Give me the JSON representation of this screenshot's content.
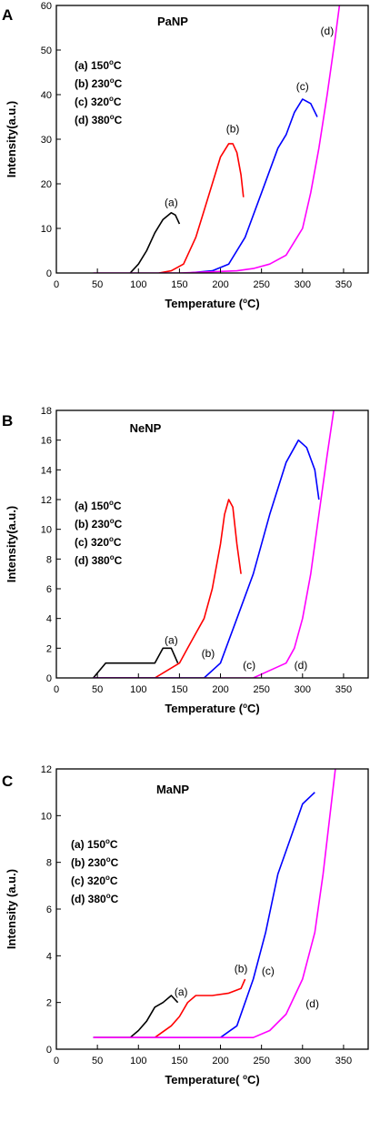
{
  "chart_data": [
    {
      "panel": "A",
      "type": "line",
      "title": "PaNP",
      "xlabel": "Temperature (°C)",
      "ylabel": "Intensity(a.u.)",
      "xlim": [
        0,
        380
      ],
      "ylim": [
        0,
        60
      ],
      "xticks": [
        0,
        50,
        100,
        150,
        200,
        250,
        300,
        350
      ],
      "yticks": [
        0,
        10,
        20,
        30,
        40,
        50,
        60
      ],
      "legend": [
        "(a) 150°C",
        "(b) 230°C",
        "(c) 320°C",
        "(d) 380°C"
      ],
      "series": [
        {
          "name": "(a)",
          "color": "#000000",
          "x": [
            90,
            100,
            110,
            120,
            130,
            140,
            145,
            150
          ],
          "y": [
            0,
            2,
            5,
            9,
            12,
            13.5,
            13,
            11
          ]
        },
        {
          "name": "(b)",
          "color": "#ff0000",
          "x": [
            125,
            140,
            155,
            170,
            180,
            190,
            200,
            210,
            215,
            220,
            225,
            228
          ],
          "y": [
            0,
            0.5,
            2,
            8,
            14,
            20,
            26,
            29,
            29,
            27,
            22,
            17
          ]
        },
        {
          "name": "(c)",
          "color": "#0000ff",
          "x": [
            160,
            190,
            210,
            230,
            250,
            270,
            280,
            290,
            300,
            310,
            318
          ],
          "y": [
            0,
            0.5,
            2,
            8,
            18,
            28,
            31,
            36,
            39,
            38,
            35
          ]
        },
        {
          "name": "(d)",
          "color": "#ff00ff",
          "x": [
            45,
            150,
            220,
            240,
            260,
            280,
            300,
            310,
            320,
            330,
            340,
            345
          ],
          "y": [
            0,
            0,
            0.5,
            1,
            2,
            4,
            10,
            18,
            28,
            40,
            53,
            60
          ]
        }
      ],
      "curve_labels": [
        {
          "text": "(a)",
          "x": 140,
          "y": 15
        },
        {
          "text": "(b)",
          "x": 215,
          "y": 31.5
        },
        {
          "text": "(c)",
          "x": 300,
          "y": 41
        },
        {
          "text": "(d)",
          "x": 330,
          "y": 53.5
        }
      ]
    },
    {
      "panel": "B",
      "type": "line",
      "title": "NeNP",
      "xlabel": "Temperature (°C)",
      "ylabel": "Intensity(a.u.)",
      "xlim": [
        0,
        380
      ],
      "ylim": [
        0,
        18
      ],
      "xticks": [
        0,
        50,
        100,
        150,
        200,
        250,
        300,
        350
      ],
      "yticks": [
        0,
        2,
        4,
        6,
        8,
        10,
        12,
        14,
        16,
        18
      ],
      "legend": [
        "(a) 150°C",
        "(b) 230°C",
        "(c) 320°C",
        "(d) 380°C"
      ],
      "series": [
        {
          "name": "(a)",
          "color": "#000000",
          "x": [
            45,
            60,
            75,
            90,
            105,
            120,
            130,
            140,
            148
          ],
          "y": [
            0,
            1,
            1,
            1,
            1,
            1,
            2,
            2,
            1
          ]
        },
        {
          "name": "(b)",
          "color": "#ff0000",
          "x": [
            45,
            120,
            150,
            160,
            170,
            180,
            190,
            200,
            205,
            210,
            215,
            220,
            225
          ],
          "y": [
            0,
            0,
            1,
            2,
            3,
            4,
            6,
            9,
            11,
            12,
            11.5,
            9,
            7
          ]
        },
        {
          "name": "(c)",
          "color": "#0000ff",
          "x": [
            45,
            180,
            200,
            220,
            240,
            260,
            280,
            295,
            305,
            315,
            320
          ],
          "y": [
            0,
            0,
            1,
            4,
            7,
            11,
            14.5,
            16,
            15.5,
            14,
            12
          ]
        },
        {
          "name": "(d)",
          "color": "#ff00ff",
          "x": [
            45,
            240,
            260,
            280,
            290,
            300,
            310,
            320,
            330,
            338
          ],
          "y": [
            0,
            0,
            0.5,
            1,
            2,
            4,
            7,
            11,
            15,
            18
          ]
        }
      ],
      "curve_labels": [
        {
          "text": "(a)",
          "x": 140,
          "y": 2.3
        },
        {
          "text": "(b)",
          "x": 185,
          "y": 1.4
        },
        {
          "text": "(c)",
          "x": 235,
          "y": 0.6
        },
        {
          "text": "(d)",
          "x": 298,
          "y": 0.6
        }
      ]
    },
    {
      "panel": "C",
      "type": "line",
      "title": "MaNP",
      "xlabel": "Temperature( °C)",
      "ylabel": "Intensity (a.u.)",
      "xlim": [
        0,
        380
      ],
      "ylim": [
        0,
        12
      ],
      "xticks": [
        0,
        50,
        100,
        150,
        200,
        250,
        300,
        350
      ],
      "yticks": [
        0,
        2,
        4,
        6,
        8,
        10,
        12
      ],
      "legend": [
        "(a) 150°C",
        "(b) 230°C",
        "(c) 320°C",
        "(d) 380°C"
      ],
      "series": [
        {
          "name": "(a)",
          "color": "#000000",
          "x": [
            45,
            90,
            100,
            110,
            120,
            130,
            140,
            148
          ],
          "y": [
            0.5,
            0.5,
            0.8,
            1.2,
            1.8,
            2.0,
            2.3,
            2.0
          ]
        },
        {
          "name": "(b)",
          "color": "#ff0000",
          "x": [
            45,
            120,
            140,
            150,
            160,
            170,
            190,
            210,
            225,
            230
          ],
          "y": [
            0.5,
            0.5,
            1.0,
            1.4,
            2.0,
            2.3,
            2.3,
            2.4,
            2.6,
            3.0
          ]
        },
        {
          "name": "(c)",
          "color": "#0000ff",
          "x": [
            45,
            200,
            220,
            240,
            255,
            270,
            285,
            300,
            315
          ],
          "y": [
            0.5,
            0.5,
            1.0,
            3.0,
            5.0,
            7.5,
            9.0,
            10.5,
            11.0
          ]
        },
        {
          "name": "(d)",
          "color": "#ff00ff",
          "x": [
            45,
            240,
            260,
            280,
            300,
            315,
            325,
            335,
            340
          ],
          "y": [
            0.5,
            0.5,
            0.8,
            1.5,
            3.0,
            5.0,
            7.5,
            10.5,
            12.0
          ]
        }
      ],
      "curve_labels": [
        {
          "text": "(a)",
          "x": 152,
          "y": 2.3
        },
        {
          "text": "(b)",
          "x": 225,
          "y": 3.3
        },
        {
          "text": "(c)",
          "x": 258,
          "y": 3.2
        },
        {
          "text": "(d)",
          "x": 312,
          "y": 1.8
        }
      ]
    }
  ]
}
